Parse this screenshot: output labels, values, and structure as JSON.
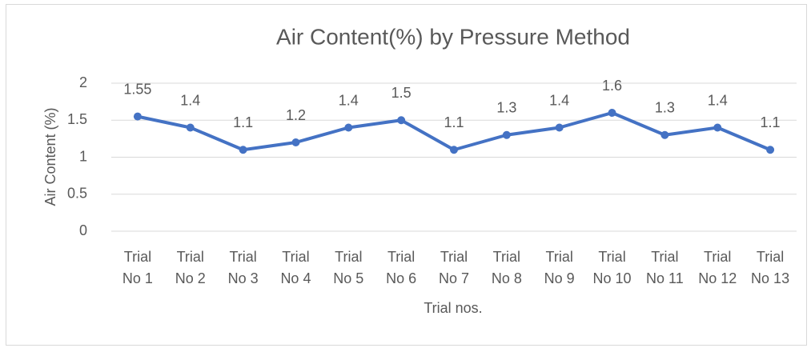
{
  "chart_data": {
    "type": "line",
    "title": "Air Content(%) by Pressure Method",
    "x_label": "Trial nos.",
    "y_label": "Air Content (%)",
    "categories": [
      "Trial No 1",
      "Trial No 2",
      "Trial No 3",
      "Trial No 4",
      "Trial No 5",
      "Trial No 6",
      "Trial No 7",
      "Trial No 8",
      "Trial No 9",
      "Trial No 10",
      "Trial No 11",
      "Trial No 12",
      "Trial No 13"
    ],
    "values": [
      1.55,
      1.4,
      1.1,
      1.2,
      1.4,
      1.5,
      1.1,
      1.3,
      1.4,
      1.6,
      1.3,
      1.4,
      1.1
    ],
    "color": "#4472c4",
    "ylim": [
      0,
      2
    ],
    "yticks": [
      0,
      0.5,
      1,
      1.5,
      2
    ],
    "grid": true
  }
}
